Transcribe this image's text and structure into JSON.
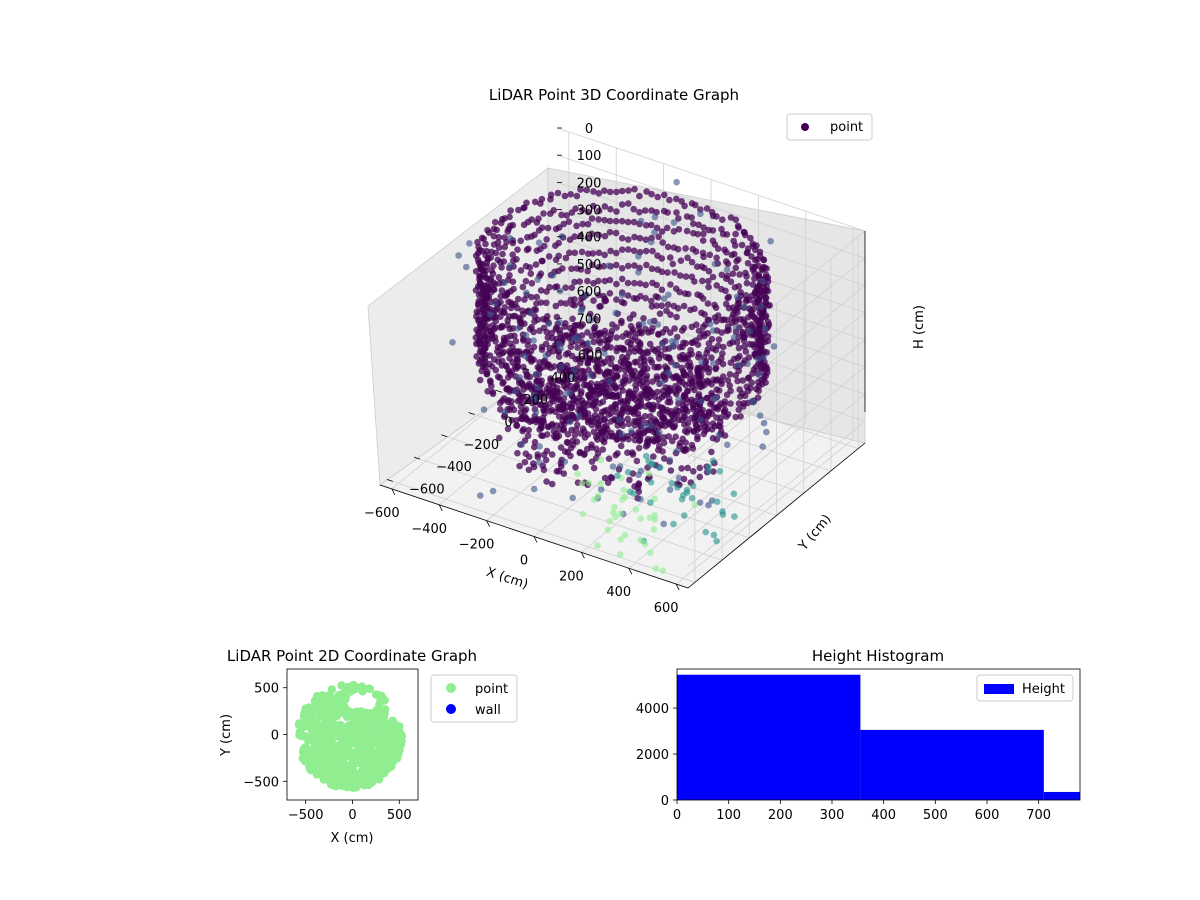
{
  "figure": {
    "background": "#ffffff",
    "point_color_low": "#440154",
    "point_color_mid": "#3b528b",
    "point_color_teal": "#21918c",
    "point_color_high": "#90ee90"
  },
  "chart_data": [
    {
      "type": "scatter3d",
      "title": "LiDAR Point 3D Coordinate Graph",
      "xlabel": "X (cm)",
      "ylabel": "Y (cm)",
      "zlabel": "H (cm)",
      "xticks": [
        "−600",
        "−400",
        "−200",
        "0",
        "200",
        "400",
        "600"
      ],
      "yticks": [
        "−600",
        "−400",
        "−200",
        "0",
        "200",
        "400",
        "600"
      ],
      "zticks": [
        "0",
        "100",
        "200",
        "300",
        "400",
        "500",
        "600",
        "700"
      ],
      "xlim": [
        -650,
        650
      ],
      "ylim": [
        -650,
        650
      ],
      "zlim": [
        0,
        780
      ],
      "z_inverted": true,
      "colormap": "viridis",
      "legend": {
        "entries": [
          {
            "label": "point",
            "color": "#440154"
          }
        ],
        "position": "upper-right"
      },
      "grid": true,
      "note": "dense ring of points (wall) with a central clump near the floor and sparse outliers"
    },
    {
      "type": "scatter",
      "title": "LiDAR Point 2D Coordinate Graph",
      "xlabel": "X (cm)",
      "ylabel": "Y (cm)",
      "xticks": [
        "−500",
        "0",
        "500"
      ],
      "yticks": [
        "−500",
        "0",
        "500"
      ],
      "xlim": [
        -700,
        700
      ],
      "ylim": [
        -700,
        700
      ],
      "series": [
        {
          "name": "point",
          "color": "#90ee90"
        },
        {
          "name": "wall",
          "color": "#0000ff"
        }
      ],
      "legend": {
        "position": "outside-right"
      }
    },
    {
      "type": "bar",
      "title": "Height Histogram",
      "xlabel": "",
      "ylabel": "",
      "bins": [
        {
          "x0": 0,
          "x1": 355,
          "count": 5450
        },
        {
          "x0": 355,
          "x1": 710,
          "count": 3050
        },
        {
          "x0": 710,
          "x1": 780,
          "count": 350
        }
      ],
      "xticks": [
        "0",
        "100",
        "200",
        "300",
        "400",
        "500",
        "600",
        "700"
      ],
      "yticks": [
        "0",
        "2000",
        "4000"
      ],
      "xlim": [
        0,
        780
      ],
      "ylim": [
        0,
        5700
      ],
      "series": [
        {
          "name": "Height",
          "color": "#0000ff"
        }
      ],
      "legend": {
        "position": "upper-right"
      }
    }
  ]
}
